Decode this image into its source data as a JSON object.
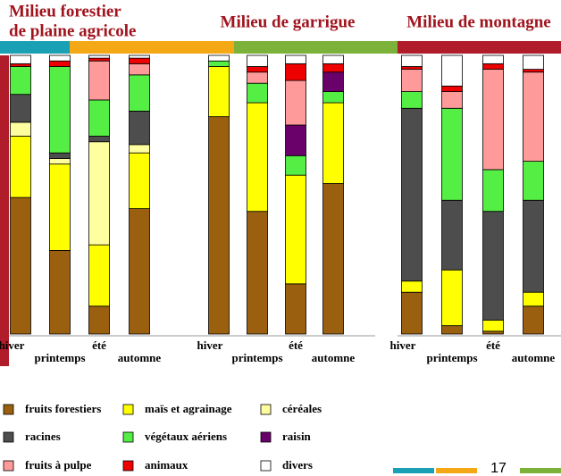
{
  "chart_data": {
    "type": "bar",
    "stacked": true,
    "groups": [
      {
        "title": [
          "Milieu forestier",
          "de plaine agricole"
        ]
      },
      {
        "title": [
          "Milieu de garrigue"
        ]
      },
      {
        "title": [
          "Milieu de montagne"
        ]
      }
    ],
    "categories": [
      "hiver",
      "printemps",
      "été",
      "automne",
      "hiver",
      "printemps",
      "été",
      "automne",
      "hiver",
      "printemps",
      "été",
      "automne"
    ],
    "ylim": [
      0,
      100
    ],
    "series": [
      {
        "name": "fruits forestiers",
        "color": "#9a6010",
        "values": [
          49,
          30,
          10,
          45,
          78,
          44,
          18,
          54,
          15,
          3,
          1,
          10
        ]
      },
      {
        "name": "maïs et agrainage",
        "color": "#ffff00",
        "values": [
          22,
          31,
          22,
          20,
          18,
          39,
          39,
          29,
          4,
          20,
          4,
          5
        ]
      },
      {
        "name": "céréales",
        "color": "#ffffa0",
        "values": [
          5,
          2,
          37,
          3,
          0,
          0,
          0,
          0,
          0,
          0,
          0,
          0
        ]
      },
      {
        "name": "racines",
        "color": "#4d4d4d",
        "values": [
          10,
          2,
          2,
          12,
          0,
          0,
          0,
          0,
          62,
          25,
          39,
          33
        ]
      },
      {
        "name": "végétaux aériens",
        "color": "#55ee44",
        "values": [
          10,
          31,
          13,
          13,
          2,
          7,
          7,
          4,
          6,
          33,
          15,
          14
        ]
      },
      {
        "name": "raisin",
        "color": "#6a006a",
        "values": [
          0,
          0,
          0,
          0,
          0,
          0,
          11,
          7,
          0,
          0,
          0,
          0
        ]
      },
      {
        "name": "fruits à pulpe",
        "color": "#ff9a9a",
        "values": [
          0,
          0,
          14,
          4,
          0,
          4,
          16,
          0,
          8,
          6,
          36,
          32
        ]
      },
      {
        "name": "animaux",
        "color": "#ee0000",
        "values": [
          1,
          2,
          1,
          2,
          0,
          2,
          6,
          3,
          1,
          2,
          2,
          1
        ]
      },
      {
        "name": "divers",
        "color": "#ffffff",
        "values": [
          3,
          2,
          1,
          1,
          2,
          4,
          3,
          3,
          4,
          11,
          3,
          5
        ]
      }
    ]
  },
  "page_number": "17"
}
